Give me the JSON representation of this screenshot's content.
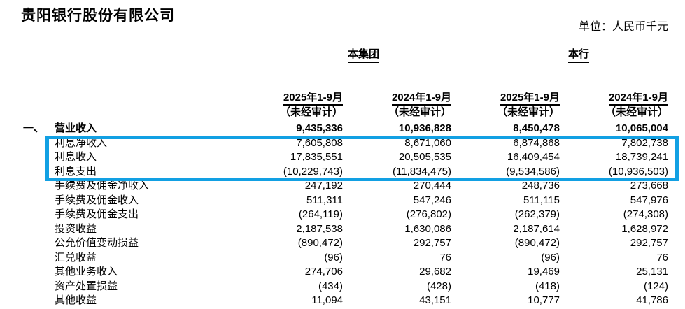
{
  "page": {
    "title": "贵阳银行股份有限公司",
    "unit_label": "单位：人民币千元"
  },
  "table": {
    "group_headers": [
      {
        "label": "本集团"
      },
      {
        "label": "本行"
      }
    ],
    "column_headers": [
      {
        "period": "2025年1-9月",
        "note": "（未经审计）"
      },
      {
        "period": "2024年1-9月",
        "note": "（未经审计）"
      },
      {
        "period": "2025年1-9月",
        "note": "（未经审计）"
      },
      {
        "period": "2024年1-9月",
        "note": "（未经审计）"
      }
    ],
    "highlight_color": "#12a0e3",
    "highlighted_row_labels": [
      "利息净收入",
      "利息收入",
      "利息支出"
    ],
    "rows": [
      {
        "prefix": "一、",
        "label": "营业收入",
        "bold": true,
        "values": [
          "9,435,336",
          "10,936,828",
          "8,450,478",
          "10,065,004"
        ]
      },
      {
        "label": "利息净收入",
        "values": [
          "7,605,808",
          "8,671,060",
          "6,874,868",
          "7,802,738"
        ]
      },
      {
        "label": "利息收入",
        "values": [
          "17,835,551",
          "20,505,535",
          "16,409,454",
          "18,739,241"
        ]
      },
      {
        "label": "利息支出",
        "values": [
          "(10,229,743)",
          "(11,834,475)",
          "(9,534,586)",
          "(10,936,503)"
        ]
      },
      {
        "label": "手续费及佣金净收入",
        "values": [
          "247,192",
          "270,444",
          "248,736",
          "273,668"
        ]
      },
      {
        "label": "手续费及佣金收入",
        "values": [
          "511,311",
          "547,246",
          "511,115",
          "547,976"
        ]
      },
      {
        "label": "手续费及佣金支出",
        "values": [
          "(264,119)",
          "(276,802)",
          "(262,379)",
          "(274,308)"
        ]
      },
      {
        "label": "投资收益",
        "values": [
          "2,187,538",
          "1,630,086",
          "2,187,614",
          "1,628,972"
        ]
      },
      {
        "label": "公允价值变动损益",
        "values": [
          "(890,472)",
          "292,757",
          "(890,472)",
          "292,757"
        ]
      },
      {
        "label": "汇兑收益",
        "values": [
          "(96)",
          "76",
          "(96)",
          "76"
        ]
      },
      {
        "label": "其他业务收入",
        "values": [
          "274,706",
          "29,682",
          "19,469",
          "25,131"
        ]
      },
      {
        "label": "资产处置损益",
        "values": [
          "(434)",
          "(428)",
          "(418)",
          "(124)"
        ]
      },
      {
        "label": "其他收益",
        "rule_below": true,
        "values": [
          "11,094",
          "43,151",
          "10,777",
          "41,786"
        ]
      }
    ]
  }
}
